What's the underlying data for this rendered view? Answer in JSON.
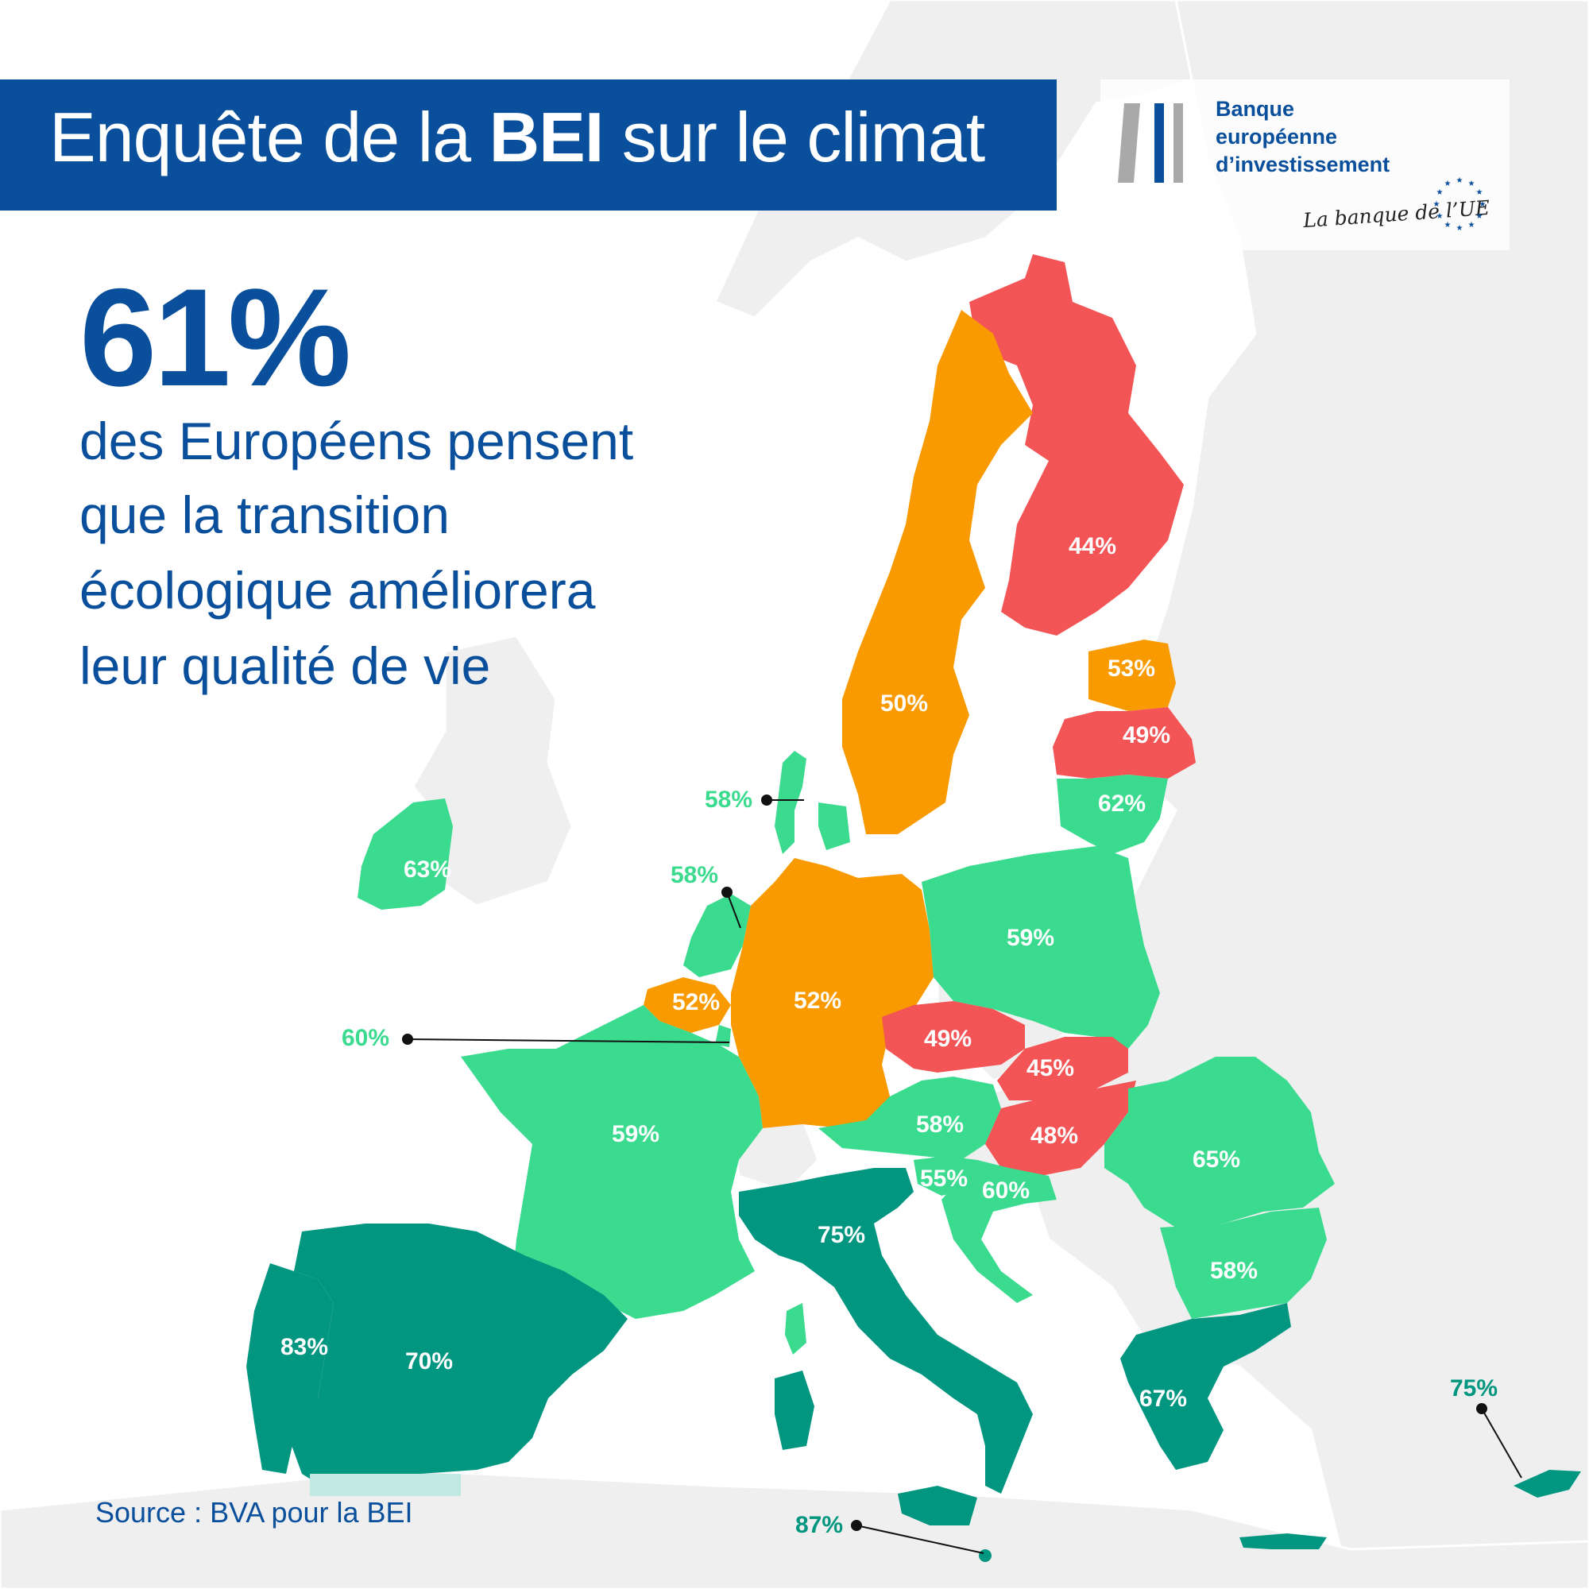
{
  "header": {
    "title_prefix": "Enquête de la ",
    "title_bold": "BEI",
    "title_suffix": " sur le climat"
  },
  "logo": {
    "line1": "Banque",
    "line2": "européenne",
    "line3": "d’investissement",
    "tagline": "La banque de l’UE"
  },
  "headline": {
    "stat": "61%",
    "line1": "des Européens pensent",
    "line2": "que la transition",
    "line3": "écologique améliorera",
    "line4": "leur qualité de vie"
  },
  "source": "Source : BVA pour la BEI",
  "legend_colors": {
    "red": "#f35455",
    "orange": "#f99a00",
    "light_green": "#3bdb8f",
    "dark_green": "#019680",
    "non_eu": "#efefef",
    "title_blue": "#0a4f9c"
  },
  "countries": {
    "finland": "44%",
    "sweden": "50%",
    "estonia": "53%",
    "latvia": "49%",
    "lithuania": "62%",
    "denmark": "58%",
    "netherlands": "58%",
    "ireland": "63%",
    "poland": "59%",
    "belgium": "52%",
    "germany": "52%",
    "luxembourg": "60%",
    "czechia": "49%",
    "slovakia": "45%",
    "austria": "58%",
    "hungary": "48%",
    "france": "59%",
    "slovenia": "55%",
    "croatia": "60%",
    "romania": "65%",
    "italy": "75%",
    "bulgaria": "58%",
    "portugal": "83%",
    "spain": "70%",
    "greece": "67%",
    "cyprus": "75%",
    "malta": "87%"
  }
}
